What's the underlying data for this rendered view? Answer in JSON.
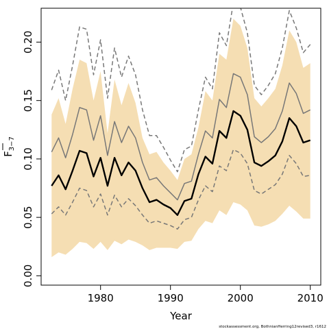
{
  "chart_data": {
    "type": "line",
    "title": "",
    "xlabel": "Year",
    "ylabel": "F̄3–7",
    "ylabel_main": "F",
    "ylabel_sub": "3−7",
    "xlim": [
      1971.5,
      2011.5
    ],
    "ylim": [
      -0.008,
      0.229
    ],
    "xticks": [
      1980,
      1990,
      2000,
      2010
    ],
    "yticks": [
      0.0,
      0.05,
      0.1,
      0.15,
      0.2
    ],
    "ytick_labels": [
      "0.00",
      "0.05",
      "0.10",
      "0.15",
      "0.20"
    ],
    "grid": false,
    "legend": "none",
    "years": [
      1973,
      1974,
      1975,
      1976,
      1977,
      1978,
      1979,
      1980,
      1981,
      1982,
      1983,
      1984,
      1985,
      1986,
      1987,
      1988,
      1989,
      1990,
      1991,
      1992,
      1993,
      1994,
      1995,
      1996,
      1997,
      1998,
      1999,
      2000,
      2001,
      2002,
      2003,
      2004,
      2005,
      2006,
      2007,
      2008,
      2009,
      2010
    ],
    "band": {
      "upper": [
        0.138,
        0.152,
        0.13,
        0.16,
        0.185,
        0.182,
        0.15,
        0.175,
        0.122,
        0.168,
        0.146,
        0.165,
        0.148,
        0.118,
        0.104,
        0.106,
        0.097,
        0.09,
        0.082,
        0.1,
        0.104,
        0.127,
        0.158,
        0.15,
        0.19,
        0.185,
        0.22,
        0.214,
        0.195,
        0.152,
        0.145,
        0.152,
        0.16,
        0.18,
        0.21,
        0.2,
        0.178,
        0.182
      ],
      "lower": [
        0.016,
        0.02,
        0.018,
        0.023,
        0.029,
        0.028,
        0.023,
        0.029,
        0.022,
        0.03,
        0.027,
        0.031,
        0.029,
        0.026,
        0.022,
        0.024,
        0.024,
        0.024,
        0.023,
        0.029,
        0.03,
        0.04,
        0.047,
        0.045,
        0.056,
        0.052,
        0.063,
        0.061,
        0.056,
        0.043,
        0.042,
        0.044,
        0.047,
        0.053,
        0.06,
        0.055,
        0.049,
        0.049
      ],
      "color": "#f5deb3"
    },
    "series": [
      {
        "values": [
          0.077,
          0.086,
          0.074,
          0.09,
          0.107,
          0.105,
          0.085,
          0.101,
          0.077,
          0.101,
          0.086,
          0.097,
          0.09,
          0.075,
          0.063,
          0.065,
          0.061,
          0.058,
          0.052,
          0.064,
          0.066,
          0.087,
          0.102,
          0.096,
          0.124,
          0.118,
          0.141,
          0.137,
          0.125,
          0.097,
          0.094,
          0.098,
          0.103,
          0.115,
          0.135,
          0.128,
          0.114,
          0.116
        ],
        "color": "#000000",
        "style": "solid",
        "width": 2.4
      },
      {
        "values": [
          0.106,
          0.118,
          0.101,
          0.121,
          0.144,
          0.142,
          0.116,
          0.137,
          0.103,
          0.132,
          0.114,
          0.128,
          0.118,
          0.097,
          0.082,
          0.084,
          0.077,
          0.071,
          0.065,
          0.079,
          0.081,
          0.104,
          0.124,
          0.118,
          0.151,
          0.144,
          0.173,
          0.17,
          0.155,
          0.119,
          0.114,
          0.119,
          0.126,
          0.141,
          0.165,
          0.156,
          0.139,
          0.142
        ],
        "color": "#777777",
        "style": "solid",
        "width": 1.5
      },
      {
        "values": [
          0.159,
          0.176,
          0.15,
          0.18,
          0.213,
          0.211,
          0.172,
          0.202,
          0.152,
          0.195,
          0.17,
          0.188,
          0.172,
          0.142,
          0.12,
          0.12,
          0.11,
          0.099,
          0.089,
          0.108,
          0.111,
          0.142,
          0.17,
          0.16,
          0.208,
          0.197,
          0.234,
          0.23,
          0.208,
          0.163,
          0.155,
          0.163,
          0.173,
          0.195,
          0.227,
          0.212,
          0.191,
          0.198
        ],
        "color": "#777777",
        "style": "dashed",
        "width": 1.5
      },
      {
        "values": [
          0.053,
          0.059,
          0.052,
          0.063,
          0.075,
          0.073,
          0.059,
          0.07,
          0.052,
          0.069,
          0.059,
          0.066,
          0.06,
          0.052,
          0.045,
          0.047,
          0.045,
          0.043,
          0.04,
          0.048,
          0.05,
          0.065,
          0.077,
          0.072,
          0.094,
          0.09,
          0.108,
          0.105,
          0.096,
          0.073,
          0.07,
          0.074,
          0.078,
          0.087,
          0.103,
          0.096,
          0.085,
          0.086
        ],
        "color": "#777777",
        "style": "dashed",
        "width": 1.5
      }
    ]
  },
  "credit": "stockassessment.org, BothnianHerring12revised3, r1612"
}
